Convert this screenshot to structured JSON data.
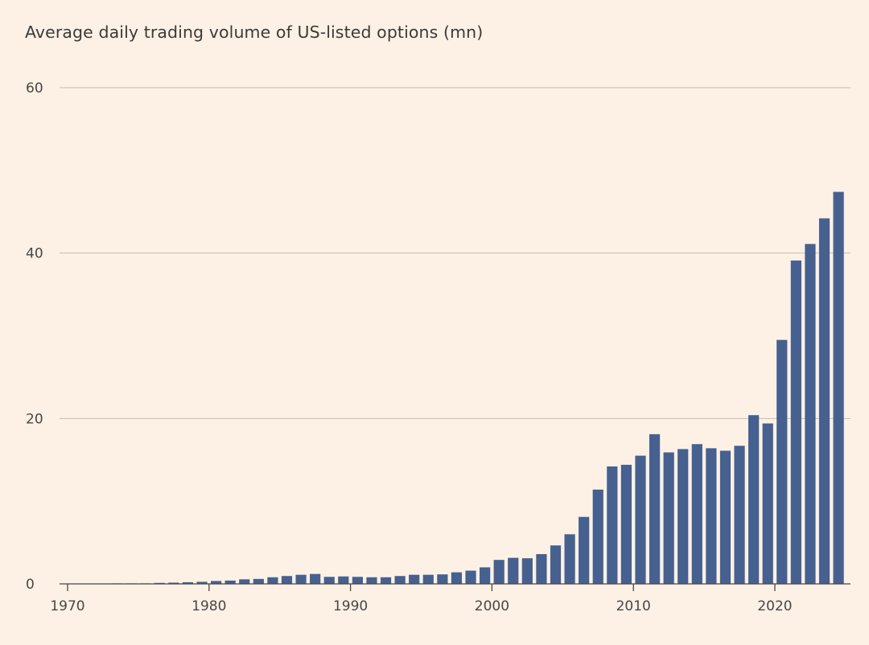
{
  "chart_data": {
    "type": "bar",
    "title": "Average daily trading volume of US-listed options (mn)",
    "xlabel": "",
    "ylabel": "",
    "ylim": [
      0,
      60
    ],
    "xlim": [
      1970,
      2025
    ],
    "y_ticks": [
      "0",
      "20",
      "40",
      "60"
    ],
    "x_ticks": [
      "1970",
      "1980",
      "1990",
      "2000",
      "2010",
      "2020"
    ],
    "grid": true,
    "colors": {
      "bar": "#46618F",
      "grid": "#C9BDB2",
      "axis": "#4A4643",
      "background": "#FDF1E6"
    },
    "x": [
      1973,
      1974,
      1975,
      1976,
      1977,
      1978,
      1979,
      1980,
      1981,
      1982,
      1983,
      1984,
      1985,
      1986,
      1987,
      1988,
      1989,
      1990,
      1991,
      1992,
      1993,
      1994,
      1995,
      1996,
      1997,
      1998,
      1999,
      2000,
      2001,
      2002,
      2003,
      2004,
      2005,
      2006,
      2007,
      2008,
      2009,
      2010,
      2011,
      2012,
      2013,
      2014,
      2015,
      2016,
      2017,
      2018,
      2019,
      2020,
      2021,
      2022,
      2023,
      2024
    ],
    "values": [
      0.01,
      0.02,
      0.05,
      0.12,
      0.15,
      0.2,
      0.25,
      0.35,
      0.4,
      0.55,
      0.6,
      0.8,
      0.95,
      1.1,
      1.2,
      0.85,
      0.9,
      0.85,
      0.8,
      0.8,
      0.95,
      1.1,
      1.1,
      1.15,
      1.4,
      1.6,
      2.0,
      2.9,
      3.15,
      3.1,
      3.6,
      4.65,
      6.0,
      8.1,
      11.4,
      14.2,
      14.4,
      15.5,
      18.1,
      15.9,
      16.3,
      16.9,
      16.4,
      16.1,
      16.7,
      20.4,
      19.4,
      29.5,
      39.1,
      41.1,
      44.2,
      47.4
    ]
  }
}
